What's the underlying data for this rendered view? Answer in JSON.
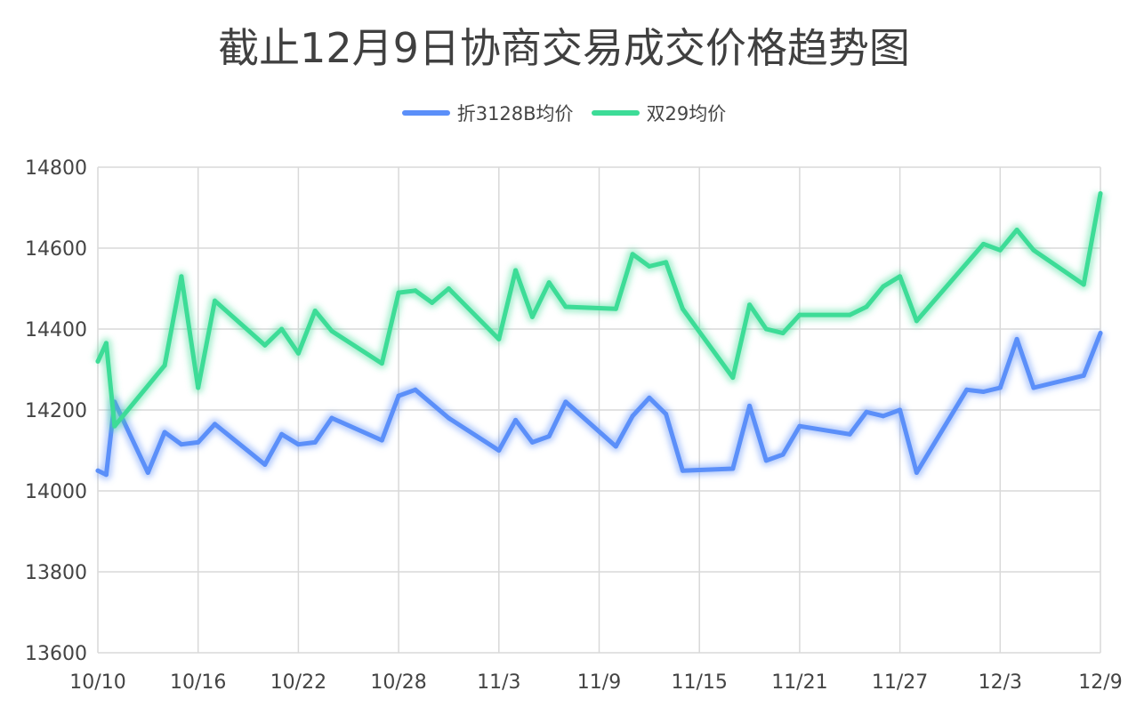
{
  "chart_data": {
    "type": "line",
    "title": "截止12月9日协商交易成交价格趋势图",
    "xlabel": "",
    "ylabel": "",
    "ylim": [
      13600,
      14800
    ],
    "yticks": [
      13600,
      13800,
      14000,
      14200,
      14400,
      14600,
      14800
    ],
    "xlim": [
      "10/10",
      "12/9"
    ],
    "xticks": [
      "10/10",
      "10/16",
      "10/22",
      "10/28",
      "11/3",
      "11/9",
      "11/15",
      "11/21",
      "11/27",
      "12/3",
      "12/9"
    ],
    "grid": true,
    "legend_position": "top-center",
    "series": [
      {
        "name": "折3128B均价",
        "color": "#5b8ff9",
        "points": [
          [
            "10/10",
            14050
          ],
          [
            "10/10.5",
            14040
          ],
          [
            "10/11",
            14220
          ],
          [
            "10/13",
            14045
          ],
          [
            "10/14",
            14145
          ],
          [
            "10/15",
            14115
          ],
          [
            "10/16",
            14120
          ],
          [
            "10/17",
            14165
          ],
          [
            "10/20",
            14065
          ],
          [
            "10/21",
            14140
          ],
          [
            "10/22",
            14115
          ],
          [
            "10/23",
            14120
          ],
          [
            "10/24",
            14180
          ],
          [
            "10/27",
            14125
          ],
          [
            "10/28",
            14235
          ],
          [
            "10/29",
            14250
          ],
          [
            "10/31",
            14180
          ],
          [
            "11/3",
            14100
          ],
          [
            "11/4",
            14175
          ],
          [
            "11/5",
            14120
          ],
          [
            "11/6",
            14135
          ],
          [
            "11/7",
            14220
          ],
          [
            "11/10",
            14110
          ],
          [
            "11/11",
            14185
          ],
          [
            "11/12",
            14230
          ],
          [
            "11/13",
            14190
          ],
          [
            "11/14",
            14050
          ],
          [
            "11/17",
            14055
          ],
          [
            "11/18",
            14210
          ],
          [
            "11/19",
            14075
          ],
          [
            "11/20",
            14090
          ],
          [
            "11/21",
            14160
          ],
          [
            "11/24",
            14140
          ],
          [
            "11/25",
            14195
          ],
          [
            "11/26",
            14185
          ],
          [
            "11/27",
            14200
          ],
          [
            "11/28",
            14045
          ],
          [
            "12/1",
            14250
          ],
          [
            "12/2",
            14245
          ],
          [
            "12/3",
            14255
          ],
          [
            "12/4",
            14375
          ],
          [
            "12/5",
            14255
          ],
          [
            "12/8",
            14285
          ],
          [
            "12/9",
            14390
          ]
        ]
      },
      {
        "name": "双29均价",
        "color": "#3ddc97",
        "points": [
          [
            "10/10",
            14320
          ],
          [
            "10/10.5",
            14365
          ],
          [
            "10/11",
            14160
          ],
          [
            "10/14",
            14310
          ],
          [
            "10/15",
            14530
          ],
          [
            "10/16",
            14255
          ],
          [
            "10/17",
            14470
          ],
          [
            "10/20",
            14360
          ],
          [
            "10/21",
            14400
          ],
          [
            "10/22",
            14340
          ],
          [
            "10/23",
            14445
          ],
          [
            "10/24",
            14395
          ],
          [
            "10/27",
            14315
          ],
          [
            "10/28",
            14490
          ],
          [
            "10/29",
            14495
          ],
          [
            "10/30",
            14465
          ],
          [
            "10/31",
            14500
          ],
          [
            "11/3",
            14375
          ],
          [
            "11/4",
            14545
          ],
          [
            "11/5",
            14430
          ],
          [
            "11/6",
            14515
          ],
          [
            "11/7",
            14455
          ],
          [
            "11/10",
            14450
          ],
          [
            "11/11",
            14585
          ],
          [
            "11/12",
            14555
          ],
          [
            "11/13",
            14565
          ],
          [
            "11/14",
            14450
          ],
          [
            "11/17",
            14280
          ],
          [
            "11/18",
            14460
          ],
          [
            "11/19",
            14400
          ],
          [
            "11/20",
            14390
          ],
          [
            "11/21",
            14435
          ],
          [
            "11/24",
            14435
          ],
          [
            "11/25",
            14455
          ],
          [
            "11/26",
            14505
          ],
          [
            "11/27",
            14530
          ],
          [
            "11/28",
            14420
          ],
          [
            "12/2",
            14610
          ],
          [
            "12/3",
            14595
          ],
          [
            "12/4",
            14645
          ],
          [
            "12/5",
            14595
          ],
          [
            "12/8",
            14510
          ],
          [
            "12/9",
            14735
          ]
        ]
      }
    ]
  }
}
